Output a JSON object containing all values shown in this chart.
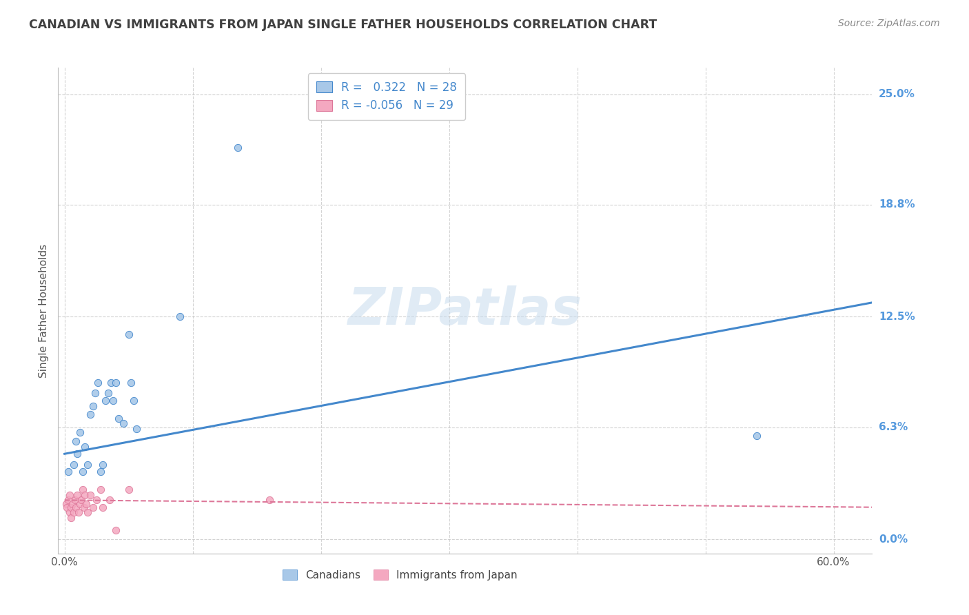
{
  "title": "CANADIAN VS IMMIGRANTS FROM JAPAN SINGLE FATHER HOUSEHOLDS CORRELATION CHART",
  "source": "Source: ZipAtlas.com",
  "ylabel": "Single Father Households",
  "xlabel_ticks_shown": [
    "0.0%",
    "60.0%"
  ],
  "xlabel_vals_shown": [
    0.0,
    0.6
  ],
  "xlabel_minor_vals": [
    0.1,
    0.2,
    0.3,
    0.4,
    0.5
  ],
  "ylabel_ticks": [
    "0.0%",
    "6.3%",
    "12.5%",
    "18.8%",
    "25.0%"
  ],
  "ylabel_vals": [
    0.0,
    0.063,
    0.125,
    0.188,
    0.25
  ],
  "xlim": [
    -0.005,
    0.63
  ],
  "ylim": [
    -0.008,
    0.265
  ],
  "canadians_x": [
    0.003,
    0.007,
    0.009,
    0.01,
    0.012,
    0.014,
    0.016,
    0.018,
    0.02,
    0.022,
    0.024,
    0.026,
    0.028,
    0.03,
    0.032,
    0.034,
    0.036,
    0.038,
    0.04,
    0.042,
    0.046,
    0.05,
    0.052,
    0.054,
    0.056,
    0.09,
    0.135,
    0.54
  ],
  "canadians_y": [
    0.038,
    0.042,
    0.055,
    0.048,
    0.06,
    0.038,
    0.052,
    0.042,
    0.07,
    0.075,
    0.082,
    0.088,
    0.038,
    0.042,
    0.078,
    0.082,
    0.088,
    0.078,
    0.088,
    0.068,
    0.065,
    0.115,
    0.088,
    0.078,
    0.062,
    0.125,
    0.22,
    0.058
  ],
  "japan_x": [
    0.001,
    0.002,
    0.003,
    0.004,
    0.004,
    0.005,
    0.005,
    0.006,
    0.007,
    0.008,
    0.009,
    0.01,
    0.011,
    0.012,
    0.013,
    0.014,
    0.015,
    0.016,
    0.017,
    0.018,
    0.02,
    0.022,
    0.025,
    0.028,
    0.03,
    0.035,
    0.04,
    0.05,
    0.16
  ],
  "japan_y": [
    0.02,
    0.018,
    0.022,
    0.015,
    0.025,
    0.012,
    0.018,
    0.02,
    0.015,
    0.022,
    0.018,
    0.025,
    0.015,
    0.02,
    0.022,
    0.028,
    0.018,
    0.025,
    0.02,
    0.015,
    0.025,
    0.018,
    0.022,
    0.028,
    0.018,
    0.022,
    0.005,
    0.028,
    0.022
  ],
  "canadian_R": 0.322,
  "canadian_N": 28,
  "japan_R": -0.056,
  "japan_N": 29,
  "canadian_line_x": [
    0.0,
    0.63
  ],
  "canadian_line_y": [
    0.048,
    0.133
  ],
  "japan_line_x": [
    0.0,
    0.63
  ],
  "japan_line_y": [
    0.022,
    0.018
  ],
  "blue_color": "#A8C8E8",
  "pink_color": "#F4A8C0",
  "blue_line_color": "#4488CC",
  "pink_line_color": "#DD7799",
  "background_color": "#FFFFFF",
  "grid_color": "#C8C8C8",
  "title_color": "#404040",
  "right_label_color": "#5599DD",
  "dot_size": 55,
  "watermark": "ZIPatlas"
}
